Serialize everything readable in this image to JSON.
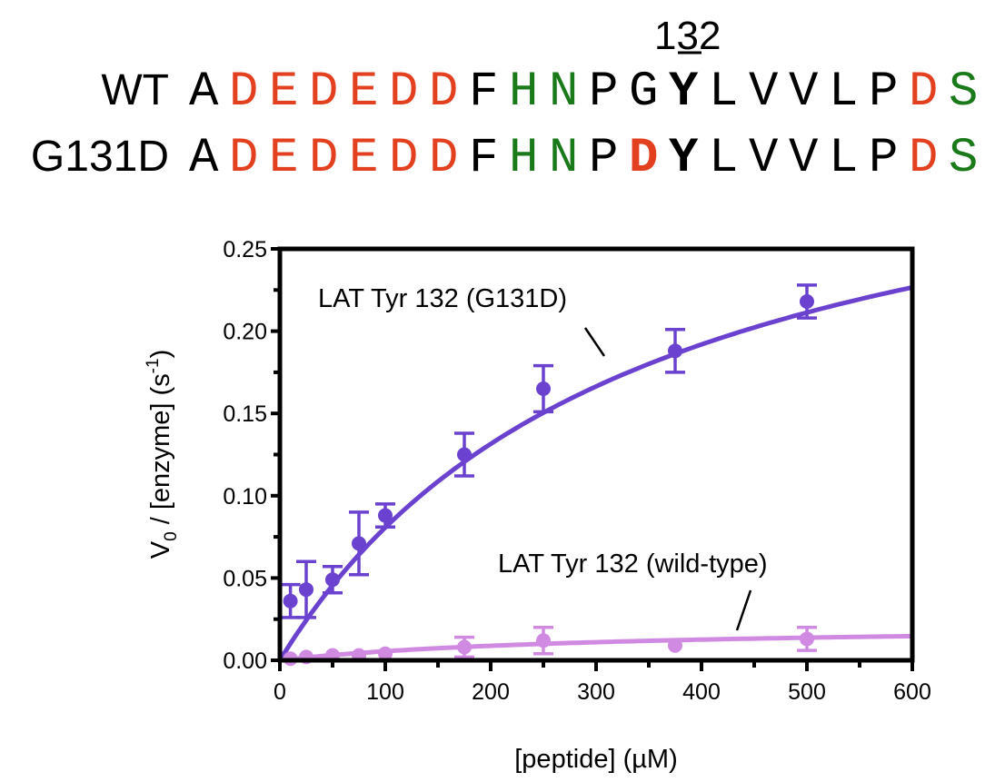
{
  "sequences": {
    "position_label": "132",
    "rows": [
      {
        "name": "WT",
        "residues": [
          {
            "c": "A",
            "color": "#000000",
            "bold": false
          },
          {
            "c": "D",
            "color": "#e2401f",
            "bold": false
          },
          {
            "c": "E",
            "color": "#e2401f",
            "bold": false
          },
          {
            "c": "D",
            "color": "#e2401f",
            "bold": false
          },
          {
            "c": "E",
            "color": "#e2401f",
            "bold": false
          },
          {
            "c": "D",
            "color": "#e2401f",
            "bold": false
          },
          {
            "c": "D",
            "color": "#e2401f",
            "bold": false
          },
          {
            "c": "F",
            "color": "#000000",
            "bold": false
          },
          {
            "c": "H",
            "color": "#1a7a1a",
            "bold": false
          },
          {
            "c": "N",
            "color": "#1a7a1a",
            "bold": false
          },
          {
            "c": "P",
            "color": "#000000",
            "bold": false
          },
          {
            "c": "G",
            "color": "#000000",
            "bold": false
          },
          {
            "c": "Y",
            "color": "#000000",
            "bold": true
          },
          {
            "c": "L",
            "color": "#000000",
            "bold": false
          },
          {
            "c": "V",
            "color": "#000000",
            "bold": false
          },
          {
            "c": "V",
            "color": "#000000",
            "bold": false
          },
          {
            "c": "L",
            "color": "#000000",
            "bold": false
          },
          {
            "c": "P",
            "color": "#000000",
            "bold": false
          },
          {
            "c": "D",
            "color": "#e2401f",
            "bold": false
          },
          {
            "c": "S",
            "color": "#1a7a1a",
            "bold": false
          }
        ]
      },
      {
        "name": "G131D",
        "residues": [
          {
            "c": "A",
            "color": "#000000",
            "bold": false
          },
          {
            "c": "D",
            "color": "#e2401f",
            "bold": false
          },
          {
            "c": "E",
            "color": "#e2401f",
            "bold": false
          },
          {
            "c": "D",
            "color": "#e2401f",
            "bold": false
          },
          {
            "c": "E",
            "color": "#e2401f",
            "bold": false
          },
          {
            "c": "D",
            "color": "#e2401f",
            "bold": false
          },
          {
            "c": "D",
            "color": "#e2401f",
            "bold": false
          },
          {
            "c": "F",
            "color": "#000000",
            "bold": false
          },
          {
            "c": "H",
            "color": "#1a7a1a",
            "bold": false
          },
          {
            "c": "N",
            "color": "#1a7a1a",
            "bold": false
          },
          {
            "c": "P",
            "color": "#000000",
            "bold": false
          },
          {
            "c": "D",
            "color": "#e2401f",
            "bold": true
          },
          {
            "c": "Y",
            "color": "#000000",
            "bold": true
          },
          {
            "c": "L",
            "color": "#000000",
            "bold": false
          },
          {
            "c": "V",
            "color": "#000000",
            "bold": false
          },
          {
            "c": "V",
            "color": "#000000",
            "bold": false
          },
          {
            "c": "L",
            "color": "#000000",
            "bold": false
          },
          {
            "c": "P",
            "color": "#000000",
            "bold": false
          },
          {
            "c": "D",
            "color": "#e2401f",
            "bold": false
          },
          {
            "c": "S",
            "color": "#1a7a1a",
            "bold": false
          }
        ]
      }
    ]
  },
  "chart_data": {
    "type": "scatter",
    "title": "",
    "xlabel": "[peptide] (µM)",
    "ylabel_main": "V",
    "ylabel_sub": "0",
    "ylabel_rest": " / [enzyme] (s",
    "ylabel_sup": "-1",
    "ylabel_end": ")",
    "xlim": [
      0,
      600
    ],
    "ylim": [
      0,
      0.25
    ],
    "xticks": [
      0,
      100,
      200,
      300,
      400,
      500,
      600
    ],
    "xtick_labels": [
      "0",
      "100",
      "200",
      "300",
      "400",
      "500",
      "600"
    ],
    "yticks": [
      0,
      0.05,
      0.1,
      0.15,
      0.2,
      0.25
    ],
    "ytick_labels": [
      "0.00",
      "0.05",
      "0.10",
      "0.15",
      "0.20",
      "0.25"
    ],
    "grid": false,
    "series": [
      {
        "name": "LAT Tyr 132 (G131D)",
        "color": "#6a42cf",
        "x": [
          10,
          25,
          50,
          75,
          100,
          175,
          250,
          375,
          500
        ],
        "y": [
          0.036,
          0.043,
          0.049,
          0.071,
          0.088,
          0.125,
          0.165,
          0.188,
          0.218
        ],
        "err": [
          0.01,
          0.017,
          0.008,
          0.019,
          0.007,
          0.013,
          0.014,
          0.013,
          0.01
        ],
        "fit": {
          "model": "michaelis-menten",
          "vmax": 0.355,
          "km": 340
        }
      },
      {
        "name": "LAT Tyr 132 (wild-type)",
        "color": "#d08ae2",
        "x": [
          10,
          25,
          50,
          75,
          100,
          175,
          250,
          375,
          500
        ],
        "y": [
          0.001,
          0.002,
          0.003,
          0.003,
          0.004,
          0.008,
          0.012,
          0.009,
          0.013
        ],
        "err": [
          0,
          0,
          0,
          0,
          0,
          0.006,
          0.008,
          0,
          0.007
        ],
        "fit": {
          "model": "michaelis-menten",
          "vmax": 0.022,
          "km": 300
        }
      }
    ],
    "annotations": [
      {
        "text": "LAT Tyr 132 (G131D)"
      },
      {
        "text": "LAT Tyr 132 (wild-type)"
      }
    ]
  }
}
